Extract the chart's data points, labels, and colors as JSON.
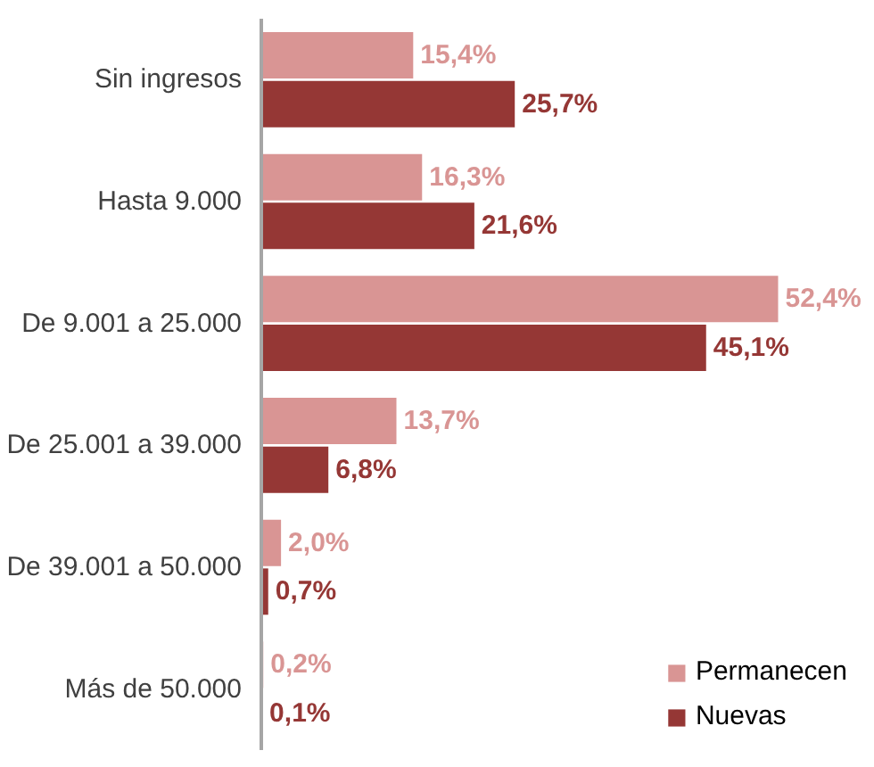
{
  "chart_data": {
    "type": "bar",
    "orientation": "horizontal",
    "categories": [
      "Sin ingresos",
      "Hasta 9.000",
      "De 9.001 a 25.000",
      "De 25.001 a 39.000",
      "De 39.001 a 50.000",
      "Más de 50.000"
    ],
    "series": [
      {
        "name": "Permanecen",
        "color": "#d99594",
        "values": [
          15.4,
          16.3,
          52.4,
          13.7,
          2.0,
          0.2
        ],
        "value_labels": [
          "15,4%",
          "16,3%",
          "52,4%",
          "13,7%",
          "2,0%",
          "0,2%"
        ]
      },
      {
        "name": "Nuevas",
        "color": "#953735",
        "values": [
          25.7,
          21.6,
          45.1,
          6.8,
          0.7,
          0.1
        ],
        "value_labels": [
          "25,7%",
          "21,6%",
          "45,1%",
          "6,8%",
          "0,7%",
          "0,1%"
        ]
      }
    ],
    "legend": "bottom right",
    "grid": false
  }
}
